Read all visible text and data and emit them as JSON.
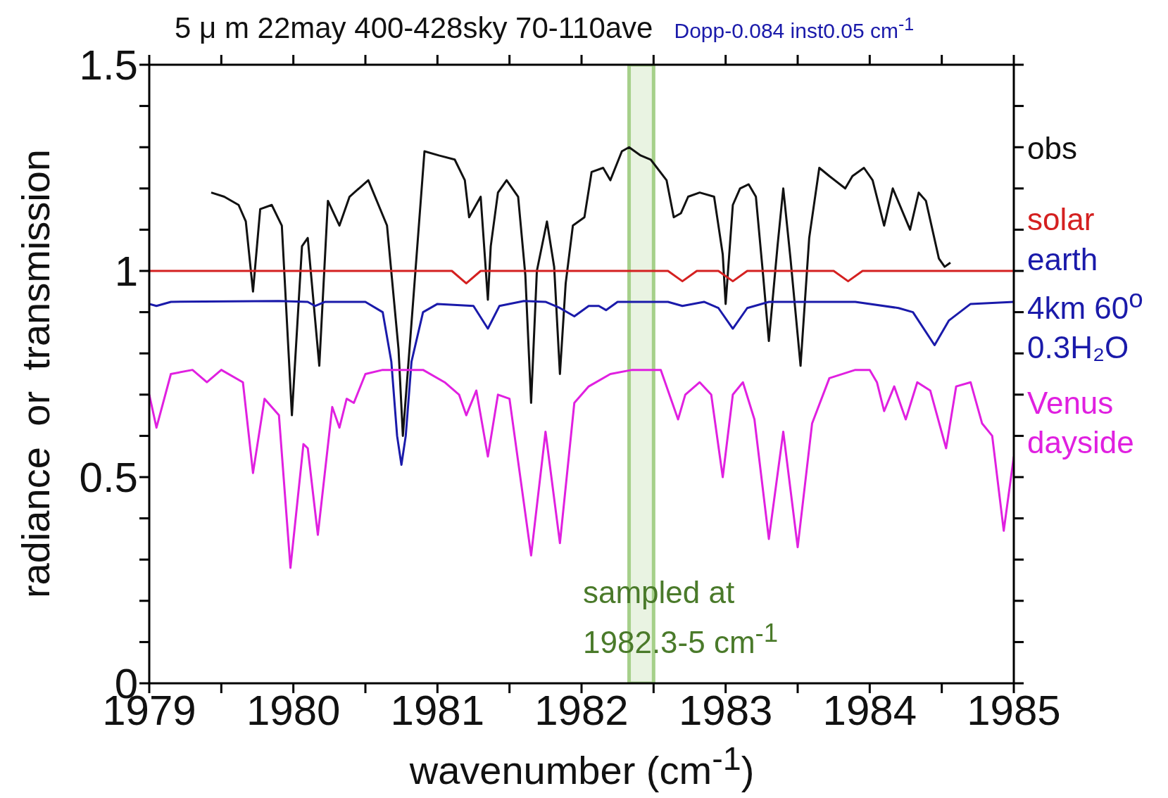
{
  "chart_data": {
    "type": "line",
    "title": "5 μ m 22may 400-428sky 70-110ave",
    "subtitle": "Dopp-0.084 inst0.05 cm$^{-1}$",
    "xlabel": "wavenumber (cm$^{-1}$)",
    "ylabel": "radiance or transmission",
    "xlim": [
      1979,
      1985
    ],
    "ylim": [
      0,
      1.5
    ],
    "xticks": [
      1979,
      {
        "value": 1979.5,
        "label": null
      },
      1980,
      {
        "value": 1980.5,
        "label": null
      },
      1981,
      {
        "value": 1981.5,
        "label": null
      },
      1982,
      {
        "value": 1982.5,
        "label": null
      },
      1983,
      {
        "value": 1983.5,
        "label": null
      },
      1984,
      {
        "value": 1984.5,
        "label": null
      },
      1985
    ],
    "yticks": [
      0,
      {
        "value": 0.1,
        "label": null
      },
      {
        "value": 0.2,
        "label": null
      },
      {
        "value": 0.3,
        "label": null
      },
      {
        "value": 0.4,
        "label": null
      },
      0.5,
      {
        "value": 0.6,
        "label": null
      },
      {
        "value": 0.7,
        "label": null
      },
      {
        "value": 0.8,
        "label": null
      },
      {
        "value": 0.9,
        "label": null
      },
      1,
      {
        "value": 1.1,
        "label": null
      },
      {
        "value": 1.2,
        "label": null
      },
      {
        "value": 1.3,
        "label": null
      },
      {
        "value": 1.4,
        "label": null
      },
      1.5
    ],
    "marker": "none",
    "line_style": "solid",
    "bands": [
      {
        "axis": "x",
        "from": 1982.33,
        "to": 1982.5,
        "color": "#a6d08a"
      }
    ],
    "annotations": [
      "sampled at\n1982.3-5 cm$^{-1}$"
    ],
    "series": [
      {
        "name": "obs",
        "color": "#111111",
        "x": [
          1979.43,
          1979.52,
          1979.62,
          1979.67,
          1979.72,
          1979.77,
          1979.85,
          1979.92,
          1979.99,
          1980.06,
          1980.1,
          1980.18,
          1980.24,
          1980.32,
          1980.39,
          1980.52,
          1980.65,
          1980.73,
          1980.76,
          1980.83,
          1980.91,
          1981.01,
          1981.12,
          1981.19,
          1981.22,
          1981.3,
          1981.35,
          1981.37,
          1981.42,
          1981.48,
          1981.56,
          1981.61,
          1981.65,
          1981.69,
          1981.76,
          1981.81,
          1981.85,
          1981.89,
          1981.94,
          1982.02,
          1982.07,
          1982.15,
          1982.2,
          1982.28,
          1982.33,
          1982.41,
          1982.48,
          1982.59,
          1982.64,
          1982.69,
          1982.74,
          1982.82,
          1982.92,
          1982.98,
          1983.0,
          1983.05,
          1983.1,
          1983.16,
          1983.21,
          1983.26,
          1983.3,
          1983.36,
          1983.4,
          1983.45,
          1983.52,
          1983.58,
          1983.65,
          1983.72,
          1983.83,
          1983.88,
          1983.96,
          1984.02,
          1984.1,
          1984.16,
          1984.28,
          1984.34,
          1984.39,
          1984.48,
          1984.52,
          1984.56
        ],
        "values": [
          1.19,
          1.18,
          1.16,
          1.12,
          0.95,
          1.15,
          1.16,
          1.11,
          0.65,
          1.06,
          1.08,
          0.77,
          1.17,
          1.11,
          1.18,
          1.22,
          1.11,
          0.81,
          0.6,
          0.92,
          1.29,
          1.28,
          1.27,
          1.22,
          1.13,
          1.18,
          0.93,
          1.06,
          1.19,
          1.22,
          1.18,
          0.99,
          0.68,
          1.0,
          1.12,
          1.01,
          0.75,
          0.97,
          1.11,
          1.13,
          1.24,
          1.25,
          1.22,
          1.29,
          1.3,
          1.28,
          1.27,
          1.22,
          1.13,
          1.14,
          1.18,
          1.19,
          1.18,
          1.04,
          0.92,
          1.16,
          1.2,
          1.21,
          1.18,
          0.99,
          0.83,
          1.06,
          1.2,
          1.03,
          0.77,
          1.08,
          1.25,
          1.23,
          1.2,
          1.23,
          1.25,
          1.22,
          1.11,
          1.2,
          1.1,
          1.19,
          1.17,
          1.03,
          1.01,
          1.02
        ]
      },
      {
        "name": "solar",
        "color": "#d42020",
        "x": [
          1979,
          1981.1,
          1981.2,
          1981.3,
          1982.6,
          1982.7,
          1982.8,
          1982.95,
          1983.05,
          1983.15,
          1983.75,
          1983.85,
          1983.95,
          1985
        ],
        "values": [
          1,
          1,
          0.97,
          1,
          1,
          0.975,
          1,
          1,
          0.975,
          1,
          1,
          0.975,
          1,
          1
        ]
      },
      {
        "name": "earth\n4km 60$^{o}$\n0.3H₂O",
        "color": "#1a1aaa",
        "x": [
          1979,
          1979.05,
          1979.15,
          1979.9,
          1980.1,
          1980.15,
          1980.22,
          1980.5,
          1980.62,
          1980.68,
          1980.72,
          1980.75,
          1980.78,
          1980.82,
          1980.9,
          1981.0,
          1981.25,
          1981.35,
          1981.43,
          1981.6,
          1981.75,
          1981.85,
          1981.95,
          1982.05,
          1982.12,
          1982.17,
          1982.25,
          1982.6,
          1982.7,
          1982.85,
          1982.95,
          1983.05,
          1983.15,
          1983.3,
          1983.65,
          1983.9,
          1984.2,
          1984.3,
          1984.45,
          1984.55,
          1984.7,
          1985
        ],
        "values": [
          0.92,
          0.915,
          0.925,
          0.927,
          0.925,
          0.915,
          0.925,
          0.925,
          0.9,
          0.78,
          0.6,
          0.53,
          0.6,
          0.78,
          0.9,
          0.92,
          0.915,
          0.86,
          0.915,
          0.927,
          0.925,
          0.91,
          0.89,
          0.915,
          0.915,
          0.905,
          0.925,
          0.925,
          0.915,
          0.925,
          0.91,
          0.86,
          0.91,
          0.925,
          0.925,
          0.925,
          0.91,
          0.9,
          0.82,
          0.88,
          0.92,
          0.925
        ]
      },
      {
        "name": "Venus\ndayside",
        "color": "#e020e0",
        "x": [
          1979,
          1979.05,
          1979.15,
          1979.3,
          1979.4,
          1979.5,
          1979.65,
          1979.72,
          1979.8,
          1979.9,
          1979.98,
          1980.07,
          1980.1,
          1980.17,
          1980.27,
          1980.32,
          1980.37,
          1980.42,
          1980.5,
          1980.62,
          1980.75,
          1980.9,
          1981.05,
          1981.15,
          1981.2,
          1981.27,
          1981.35,
          1981.42,
          1981.5,
          1981.65,
          1981.75,
          1981.85,
          1981.95,
          1982.05,
          1982.2,
          1982.35,
          1982.55,
          1982.62,
          1982.67,
          1982.72,
          1982.82,
          1982.9,
          1982.98,
          1983.05,
          1983.12,
          1983.2,
          1983.3,
          1983.4,
          1983.5,
          1983.6,
          1983.72,
          1983.9,
          1984.0,
          1984.05,
          1984.1,
          1984.17,
          1984.25,
          1984.33,
          1984.42,
          1984.53,
          1984.6,
          1984.7,
          1984.78,
          1984.85,
          1984.93,
          1985
        ],
        "values": [
          0.7,
          0.62,
          0.75,
          0.76,
          0.73,
          0.76,
          0.73,
          0.51,
          0.69,
          0.65,
          0.28,
          0.58,
          0.57,
          0.36,
          0.67,
          0.62,
          0.69,
          0.68,
          0.75,
          0.76,
          0.76,
          0.76,
          0.73,
          0.7,
          0.65,
          0.71,
          0.55,
          0.7,
          0.69,
          0.31,
          0.61,
          0.34,
          0.68,
          0.72,
          0.75,
          0.76,
          0.76,
          0.69,
          0.64,
          0.7,
          0.73,
          0.7,
          0.5,
          0.7,
          0.73,
          0.64,
          0.35,
          0.61,
          0.33,
          0.63,
          0.74,
          0.76,
          0.76,
          0.73,
          0.66,
          0.72,
          0.64,
          0.73,
          0.71,
          0.57,
          0.72,
          0.73,
          0.63,
          0.6,
          0.37,
          0.55
        ]
      }
    ]
  }
}
